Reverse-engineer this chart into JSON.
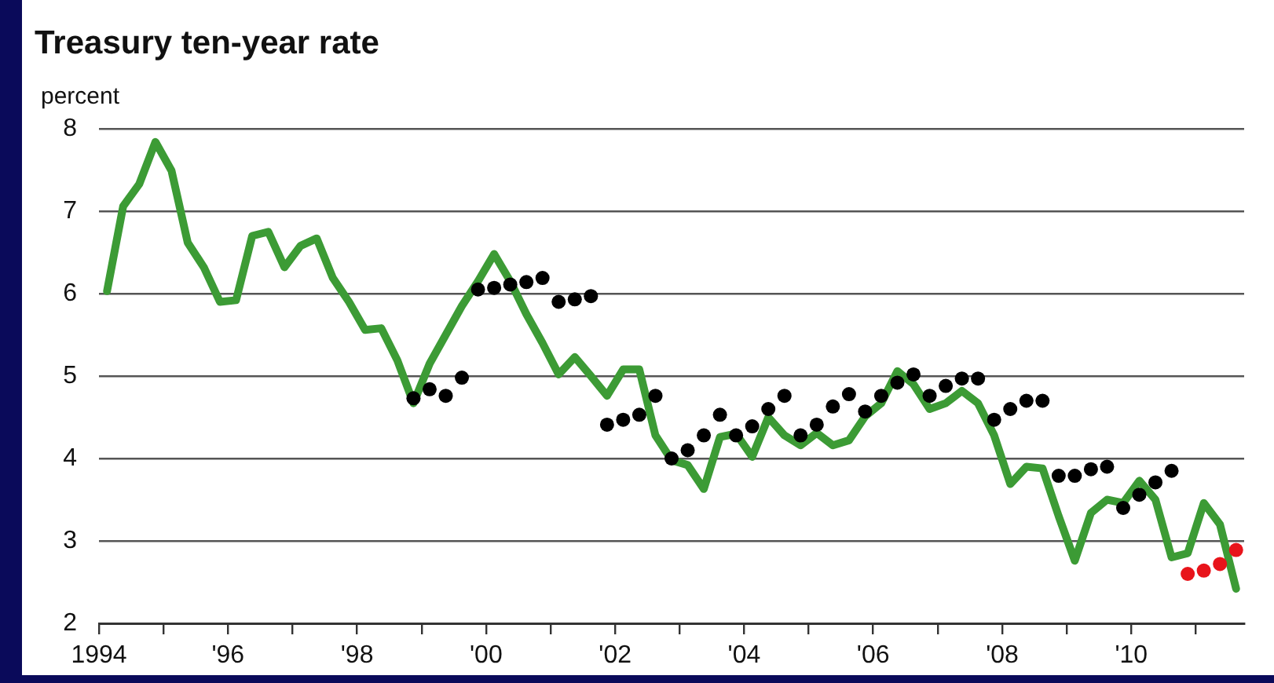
{
  "chart_data": {
    "type": "line",
    "title": "Treasury ten-year rate",
    "ylabel": "percent",
    "xlim": [
      1994,
      2011.75
    ],
    "ylim": [
      2,
      8
    ],
    "yticks": [
      2,
      3,
      4,
      5,
      6,
      7,
      8
    ],
    "xticks": [
      {
        "value": 1994,
        "label": "1994"
      },
      {
        "value": 1995,
        "label": null
      },
      {
        "value": 1996,
        "label": "'96"
      },
      {
        "value": 1997,
        "label": null
      },
      {
        "value": 1998,
        "label": "'98"
      },
      {
        "value": 1999,
        "label": null
      },
      {
        "value": 2000,
        "label": "'00"
      },
      {
        "value": 2001,
        "label": null
      },
      {
        "value": 2002,
        "label": "'02"
      },
      {
        "value": 2003,
        "label": null
      },
      {
        "value": 2004,
        "label": "'04"
      },
      {
        "value": 2005,
        "label": null
      },
      {
        "value": 2006,
        "label": "'06"
      },
      {
        "value": 2007,
        "label": null
      },
      {
        "value": 2008,
        "label": "'08"
      },
      {
        "value": 2009,
        "label": null
      },
      {
        "value": 2010,
        "label": "'10"
      },
      {
        "value": 2011,
        "label": null
      }
    ],
    "grid": "y",
    "legend": false,
    "series": [
      {
        "color": "#3c9b35",
        "x": [
          1994.125,
          1994.375,
          1994.625,
          1994.875,
          1995.125,
          1995.375,
          1995.625,
          1995.875,
          1996.125,
          1996.375,
          1996.625,
          1996.875,
          1997.125,
          1997.375,
          1997.625,
          1997.875,
          1998.125,
          1998.375,
          1998.625,
          1998.875,
          1999.125,
          1999.375,
          1999.625,
          1999.875,
          2000.125,
          2000.375,
          2000.625,
          2000.875,
          2001.125,
          2001.375,
          2001.625,
          2001.875,
          2002.125,
          2002.375,
          2002.625,
          2002.875,
          2003.125,
          2003.375,
          2003.625,
          2003.875,
          2004.125,
          2004.375,
          2004.625,
          2004.875,
          2005.125,
          2005.375,
          2005.625,
          2005.875,
          2006.125,
          2006.375,
          2006.625,
          2006.875,
          2007.125,
          2007.375,
          2007.625,
          2007.875,
          2008.125,
          2008.375,
          2008.625,
          2008.875,
          2009.125,
          2009.375,
          2009.625,
          2009.875,
          2010.125,
          2010.375,
          2010.625,
          2010.875,
          2011.125,
          2011.375,
          2011.625
        ],
        "values": [
          6.03,
          7.06,
          7.33,
          7.84,
          7.49,
          6.62,
          6.32,
          5.9,
          5.92,
          6.7,
          6.75,
          6.32,
          6.58,
          6.67,
          6.19,
          5.9,
          5.56,
          5.58,
          5.19,
          4.67,
          5.15,
          5.5,
          5.85,
          6.15,
          6.48,
          6.15,
          5.75,
          5.4,
          5.02,
          5.23,
          5.0,
          4.76,
          5.08,
          5.08,
          4.28,
          3.98,
          3.92,
          3.63,
          4.26,
          4.3,
          4.02,
          4.5,
          4.28,
          4.16,
          4.31,
          4.16,
          4.22,
          4.51,
          4.67,
          5.06,
          4.9,
          4.6,
          4.67,
          4.82,
          4.67,
          4.28,
          3.69,
          3.9,
          3.88,
          3.3,
          2.76,
          3.34,
          3.5,
          3.46,
          3.73,
          3.5,
          2.8,
          2.85,
          3.46,
          3.2,
          2.42
        ]
      },
      {
        "type": "scatter",
        "marker": "circle",
        "color": "#000000",
        "x": [
          1998.875,
          1999.125,
          1999.375,
          1999.625,
          1999.875,
          2000.125,
          2000.375,
          2000.625,
          2000.875,
          2001.125,
          2001.375,
          2001.625,
          2001.875,
          2002.125,
          2002.375,
          2002.625,
          2002.875,
          2003.125,
          2003.375,
          2003.625,
          2003.875,
          2004.125,
          2004.375,
          2004.625,
          2004.875,
          2005.125,
          2005.375,
          2005.625,
          2005.875,
          2006.125,
          2006.375,
          2006.625,
          2006.875,
          2007.125,
          2007.375,
          2007.625,
          2007.875,
          2008.125,
          2008.375,
          2008.625,
          2008.875,
          2009.125,
          2009.375,
          2009.625,
          2009.875,
          2010.125,
          2010.375,
          2010.625
        ],
        "values": [
          4.73,
          4.84,
          4.76,
          4.98,
          6.05,
          6.07,
          6.11,
          6.14,
          6.19,
          5.9,
          5.93,
          5.97,
          4.41,
          4.47,
          4.53,
          4.76,
          4.0,
          4.1,
          4.28,
          4.53,
          4.28,
          4.39,
          4.6,
          4.76,
          4.28,
          4.41,
          4.63,
          4.78,
          4.57,
          4.76,
          4.92,
          5.02,
          4.76,
          4.88,
          4.97,
          4.97,
          4.47,
          4.6,
          4.7,
          4.7,
          3.79,
          3.79,
          3.87,
          3.9,
          3.4,
          3.56,
          3.71,
          3.85
        ]
      },
      {
        "type": "scatter",
        "marker": "circle",
        "color": "#e8141b",
        "x": [
          2010.875,
          2011.125,
          2011.375,
          2011.625
        ],
        "values": [
          2.6,
          2.64,
          2.72,
          2.89
        ]
      }
    ]
  }
}
